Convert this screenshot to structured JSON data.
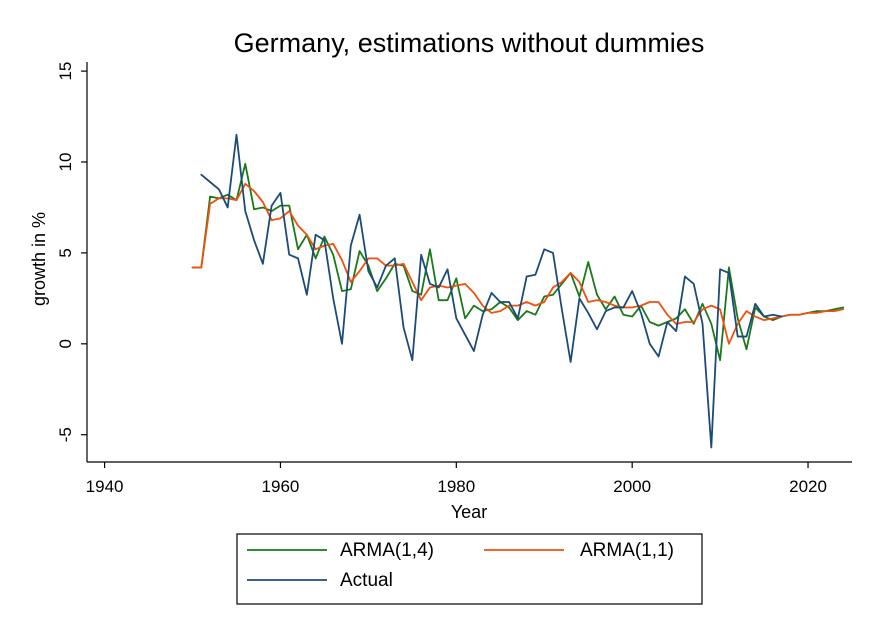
{
  "chart_data": {
    "type": "line",
    "title": "Germany, estimations without dummies",
    "xlabel": "Year",
    "ylabel": "growth in %",
    "xlim": [
      1938,
      2025
    ],
    "ylim": [
      -6.5,
      15.5
    ],
    "xticks": [
      1940,
      1960,
      1980,
      2000,
      2020
    ],
    "yticks": [
      -5,
      0,
      5,
      10,
      15
    ],
    "grid": false,
    "legend_position": "bottom",
    "series": [
      {
        "name": "ARMA(1,4)",
        "color": "#1a7a1a",
        "x": [
          1950,
          1951,
          1952,
          1953,
          1954,
          1955,
          1956,
          1957,
          1958,
          1959,
          1960,
          1961,
          1962,
          1963,
          1964,
          1965,
          1966,
          1967,
          1968,
          1969,
          1970,
          1971,
          1972,
          1973,
          1974,
          1975,
          1976,
          1977,
          1978,
          1979,
          1980,
          1981,
          1982,
          1983,
          1984,
          1985,
          1986,
          1987,
          1988,
          1989,
          1990,
          1991,
          1992,
          1993,
          1994,
          1995,
          1996,
          1997,
          1998,
          1999,
          2000,
          2001,
          2002,
          2003,
          2004,
          2005,
          2006,
          2007,
          2008,
          2009,
          2010,
          2011,
          2012,
          2013,
          2014,
          2015,
          2016,
          2017,
          2018,
          2019,
          2020,
          2021,
          2022,
          2023,
          2024
        ],
        "values": [
          4.2,
          4.2,
          8.1,
          8.0,
          8.2,
          7.9,
          9.9,
          7.4,
          7.5,
          7.3,
          7.6,
          7.6,
          5.2,
          6.0,
          4.7,
          5.9,
          4.9,
          2.9,
          3.0,
          5.1,
          4.3,
          2.9,
          3.6,
          4.4,
          4.3,
          2.9,
          2.7,
          5.2,
          2.4,
          2.4,
          3.6,
          1.4,
          2.1,
          1.8,
          1.9,
          2.3,
          2.0,
          1.3,
          1.8,
          1.6,
          2.6,
          2.7,
          3.3,
          3.9,
          2.6,
          4.5,
          2.7,
          1.9,
          2.6,
          1.6,
          1.5,
          2.1,
          1.2,
          1.0,
          1.2,
          1.4,
          1.9,
          1.1,
          2.2,
          1.1,
          -0.9,
          4.2,
          1.4,
          -0.3,
          2.0,
          1.5,
          1.3,
          1.5,
          1.6,
          1.6,
          1.7,
          1.8,
          1.8,
          1.9,
          2.0
        ]
      },
      {
        "name": "ARMA(1,1)",
        "color": "#f05010",
        "x": [
          1950,
          1951,
          1952,
          1953,
          1954,
          1955,
          1956,
          1957,
          1958,
          1959,
          1960,
          1961,
          1962,
          1963,
          1964,
          1965,
          1966,
          1967,
          1968,
          1969,
          1970,
          1971,
          1972,
          1973,
          1974,
          1975,
          1976,
          1977,
          1978,
          1979,
          1980,
          1981,
          1982,
          1983,
          1984,
          1985,
          1986,
          1987,
          1988,
          1989,
          1990,
          1991,
          1992,
          1993,
          1994,
          1995,
          1996,
          1997,
          1998,
          1999,
          2000,
          2001,
          2002,
          2003,
          2004,
          2005,
          2006,
          2007,
          2008,
          2009,
          2010,
          2011,
          2012,
          2013,
          2014,
          2015,
          2016,
          2017,
          2018,
          2019,
          2020,
          2021,
          2022,
          2023,
          2024
        ],
        "values": [
          4.2,
          4.2,
          7.7,
          8.0,
          8.0,
          7.9,
          8.8,
          8.4,
          7.8,
          6.8,
          6.9,
          7.3,
          6.5,
          6.0,
          5.2,
          5.4,
          5.5,
          4.6,
          3.4,
          4.0,
          4.7,
          4.7,
          4.3,
          4.3,
          4.4,
          3.4,
          2.4,
          3.1,
          3.2,
          3.1,
          3.2,
          3.3,
          2.8,
          2.1,
          1.7,
          1.8,
          2.1,
          2.1,
          2.3,
          2.1,
          2.3,
          3.1,
          3.4,
          3.9,
          3.4,
          2.3,
          2.4,
          2.3,
          2.1,
          2.0,
          2.0,
          2.1,
          2.3,
          2.3,
          1.6,
          1.1,
          1.2,
          1.2,
          1.9,
          2.1,
          1.9,
          0.0,
          1.1,
          1.8,
          1.5,
          1.3,
          1.4,
          1.5,
          1.6,
          1.6,
          1.7,
          1.7,
          1.8,
          1.8,
          1.9
        ]
      },
      {
        "name": "Actual",
        "color": "#1c4b77",
        "x": [
          1951,
          1952,
          1953,
          1954,
          1955,
          1956,
          1957,
          1958,
          1959,
          1960,
          1961,
          1962,
          1963,
          1964,
          1965,
          1966,
          1967,
          1968,
          1969,
          1970,
          1971,
          1972,
          1973,
          1974,
          1975,
          1976,
          1977,
          1978,
          1979,
          1980,
          1981,
          1982,
          1983,
          1984,
          1985,
          1986,
          1987,
          1988,
          1989,
          1990,
          1991,
          1992,
          1993,
          1994,
          1995,
          1996,
          1997,
          1998,
          1999,
          2000,
          2001,
          2002,
          2003,
          2004,
          2005,
          2006,
          2007,
          2008,
          2009,
          2010,
          2011,
          2012,
          2013,
          2014,
          2015,
          2016,
          2017
        ],
        "values": [
          9.3,
          8.9,
          8.5,
          7.5,
          11.5,
          7.3,
          5.7,
          4.4,
          7.6,
          8.3,
          4.9,
          4.7,
          2.7,
          6.0,
          5.7,
          2.5,
          0.0,
          5.4,
          7.1,
          4.0,
          3.1,
          4.3,
          4.7,
          0.9,
          -0.9,
          4.9,
          3.3,
          3.1,
          4.1,
          1.4,
          0.5,
          -0.4,
          1.6,
          2.8,
          2.3,
          2.3,
          1.4,
          3.7,
          3.8,
          5.2,
          5.0,
          1.9,
          -1.0,
          2.5,
          1.7,
          0.8,
          1.8,
          2.0,
          2.0,
          2.9,
          1.7,
          0.0,
          -0.7,
          1.2,
          0.7,
          3.7,
          3.3,
          1.1,
          -5.7,
          4.1,
          3.9,
          0.4,
          0.4,
          2.2,
          1.5,
          1.6,
          1.5
        ]
      }
    ]
  }
}
